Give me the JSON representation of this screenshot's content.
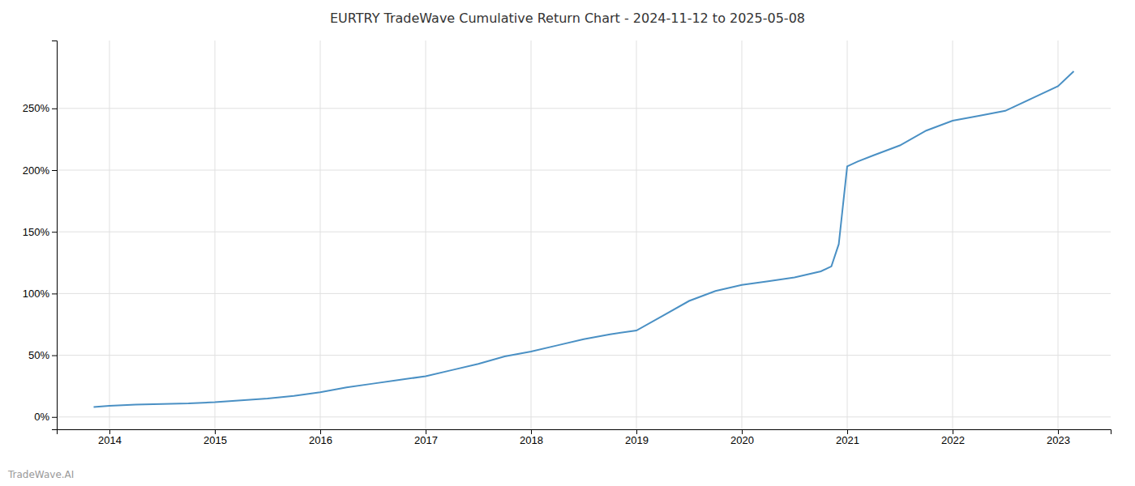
{
  "chart_data": {
    "type": "line",
    "title": "EURTRY TradeWave Cumulative Return Chart - 2024-11-12 to 2025-05-08",
    "annotations": [
      "TradeWave.AI"
    ],
    "x": [
      2013.85,
      2014.0,
      2014.25,
      2014.5,
      2014.75,
      2015.0,
      2015.25,
      2015.5,
      2015.75,
      2016.0,
      2016.25,
      2016.5,
      2016.75,
      2017.0,
      2017.25,
      2017.5,
      2017.75,
      2018.0,
      2018.25,
      2018.5,
      2018.75,
      2019.0,
      2019.25,
      2019.5,
      2019.75,
      2020.0,
      2020.25,
      2020.5,
      2020.75,
      2020.85,
      2020.92,
      2021.0,
      2021.1,
      2021.25,
      2021.5,
      2021.75,
      2022.0,
      2022.25,
      2022.5,
      2022.75,
      2023.0,
      2023.15
    ],
    "values": [
      8,
      9,
      10,
      10.5,
      11,
      12,
      13.5,
      15,
      17,
      20,
      24,
      27,
      30,
      33,
      38,
      43,
      49,
      53,
      58,
      63,
      67,
      70,
      82,
      94,
      102,
      107,
      110,
      113,
      118,
      122,
      140,
      203,
      207,
      212,
      220,
      232,
      240,
      244,
      248,
      258,
      268,
      280
    ],
    "color": "#4a90c4",
    "xlim": [
      2013.5,
      2023.5
    ],
    "xticks": [
      2014,
      2015,
      2016,
      2017,
      2018,
      2019,
      2020,
      2021,
      2022,
      2023
    ],
    "ylim": [
      -10,
      305
    ],
    "yticks": [
      {
        "value": 0,
        "label": "0%"
      },
      {
        "value": 50,
        "label": "50%"
      },
      {
        "value": 100,
        "label": "100%"
      },
      {
        "value": 150,
        "label": "150%"
      },
      {
        "value": 200,
        "label": "200%"
      },
      {
        "value": 250,
        "label": "250%"
      }
    ],
    "grid": true
  }
}
